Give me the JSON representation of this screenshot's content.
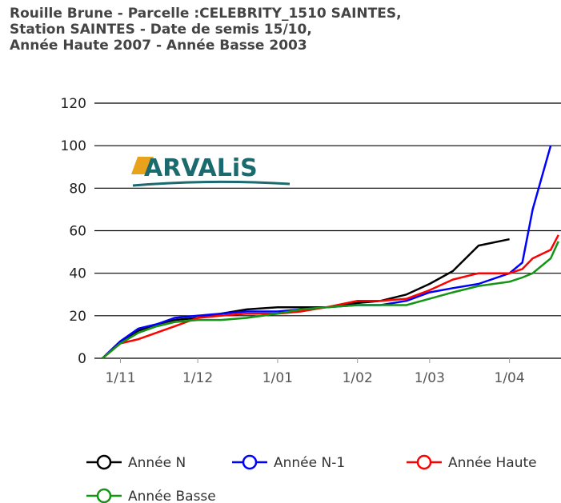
{
  "chart_data": {
    "type": "line",
    "title": [
      "Rouille Brune - Parcelle :CELEBRITY_1510 SAINTES,",
      "Station SAINTES - Date de semis 15/10,",
      "Année Haute 2007 - Année Basse 2003"
    ],
    "logo": "ARVALiS",
    "x": [
      "25/10",
      "1/11",
      "8/11",
      "15/11",
      "22/11",
      "1/12",
      "10/12",
      "20/12",
      "1/01",
      "10/01",
      "20/01",
      "1/02",
      "10/02",
      "20/02",
      "1/03",
      "10/03",
      "20/03",
      "1/04",
      "6/04",
      "10/04",
      "17/04",
      "20/04"
    ],
    "xlim": [
      "25/10",
      "21/04"
    ],
    "xticks": [
      "1/11",
      "1/12",
      "1/01",
      "1/02",
      "1/03",
      "1/04"
    ],
    "ylim": [
      0,
      120
    ],
    "yticks": [
      0,
      20,
      40,
      60,
      80,
      100,
      120
    ],
    "grid": true,
    "series": [
      {
        "name": "Année N",
        "color": "#000000",
        "values": [
          0,
          8,
          13,
          16,
          18,
          19,
          21,
          23,
          24,
          24,
          24,
          26,
          27,
          30,
          35,
          41,
          53,
          56,
          null,
          null,
          null,
          null
        ]
      },
      {
        "name": "Année N-1",
        "color": "#0000ff",
        "values": [
          0,
          8,
          14,
          16,
          19,
          20,
          21,
          22,
          22,
          23,
          24,
          25,
          25,
          27,
          31,
          33,
          35,
          40,
          45,
          70,
          100,
          null
        ]
      },
      {
        "name": "Année Haute",
        "color": "#ff0000",
        "values": [
          0,
          7,
          9,
          12,
          15,
          19,
          20,
          21,
          21,
          22,
          24,
          27,
          27,
          28,
          32,
          37,
          40,
          40,
          42,
          47,
          51,
          58
        ]
      },
      {
        "name": "Année Basse",
        "color": "#149414",
        "values": [
          0,
          7,
          12,
          15,
          17,
          18,
          18,
          19,
          21,
          23,
          24,
          25,
          25,
          25,
          28,
          31,
          34,
          36,
          38,
          40,
          47,
          55
        ]
      }
    ]
  }
}
